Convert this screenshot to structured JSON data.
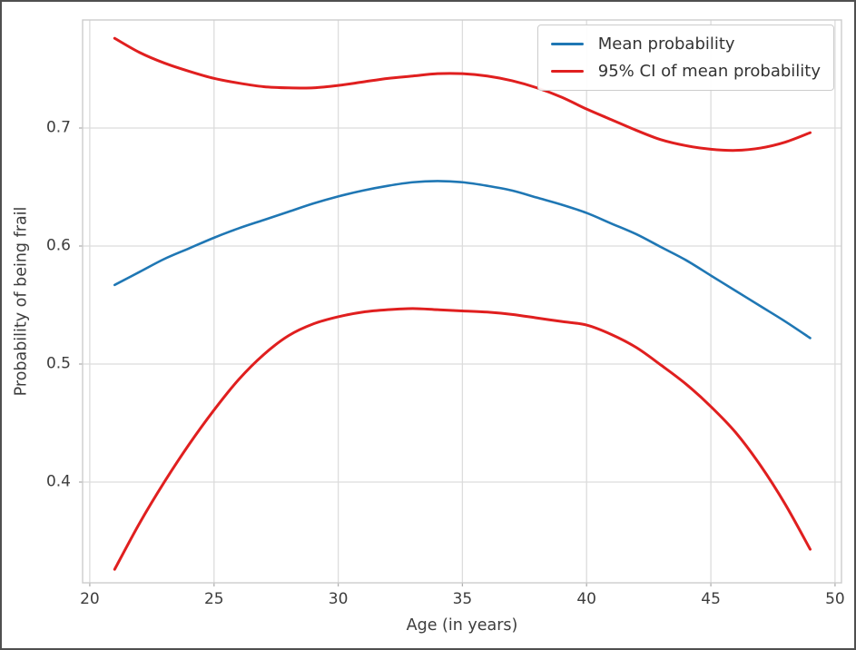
{
  "figure": {
    "background": "#ffffff",
    "border_color": "#4f4f4f"
  },
  "chart_data": {
    "type": "line",
    "title": "",
    "xlabel": "Age (in years)",
    "ylabel": "Probability of being frail",
    "xlim": [
      19.71,
      50.26
    ],
    "ylim": [
      0.3146,
      0.7915
    ],
    "x_ticks": [
      20,
      25,
      30,
      35,
      40,
      45,
      50
    ],
    "x_tick_labels": [
      "20",
      "25",
      "30",
      "35",
      "40",
      "45",
      "50"
    ],
    "y_ticks": [
      0.4,
      0.5,
      0.6,
      0.7
    ],
    "y_tick_labels": [
      "0.4",
      "0.5",
      "0.6",
      "0.7"
    ],
    "grid": true,
    "grid_color": "#dcdcdc",
    "spine_color": "#cccccc",
    "tick_mark_color": "#b0b0b0",
    "legend": {
      "position": "upper right",
      "entries": [
        {
          "label": "Mean probability",
          "color": "#1f77b4"
        },
        {
          "label": "95% CI of mean probability",
          "color": "#e01f1f"
        }
      ]
    },
    "x": [
      21,
      22,
      23,
      24,
      25,
      26,
      27,
      28,
      29,
      30,
      31,
      32,
      33,
      34,
      35,
      36,
      37,
      38,
      39,
      40,
      41,
      42,
      43,
      44,
      45,
      46,
      47,
      48,
      49
    ],
    "series": [
      {
        "name": "Mean probability",
        "color": "#1f77b4",
        "width": 2.6,
        "values": [
          0.567,
          0.578,
          0.589,
          0.598,
          0.607,
          0.615,
          0.622,
          0.629,
          0.636,
          0.642,
          0.647,
          0.651,
          0.654,
          0.655,
          0.654,
          0.651,
          0.647,
          0.641,
          0.635,
          0.628,
          0.619,
          0.61,
          0.599,
          0.588,
          0.575,
          0.562,
          0.549,
          0.536,
          0.522
        ]
      },
      {
        "name": "95% CI upper bound",
        "color": "#e01f1f",
        "width": 3,
        "values": [
          0.776,
          0.764,
          0.755,
          0.748,
          0.742,
          0.738,
          0.735,
          0.734,
          0.734,
          0.736,
          0.739,
          0.742,
          0.744,
          0.746,
          0.746,
          0.744,
          0.74,
          0.734,
          0.726,
          0.716,
          0.707,
          0.698,
          0.69,
          0.685,
          0.682,
          0.681,
          0.683,
          0.688,
          0.696
        ]
      },
      {
        "name": "95% CI lower bound",
        "color": "#e01f1f",
        "width": 3,
        "values": [
          0.326,
          0.365,
          0.4,
          0.432,
          0.461,
          0.487,
          0.508,
          0.524,
          0.534,
          0.54,
          0.544,
          0.546,
          0.547,
          0.546,
          0.545,
          0.544,
          0.542,
          0.539,
          0.536,
          0.533,
          0.525,
          0.514,
          0.499,
          0.483,
          0.464,
          0.442,
          0.414,
          0.381,
          0.343
        ]
      }
    ]
  }
}
